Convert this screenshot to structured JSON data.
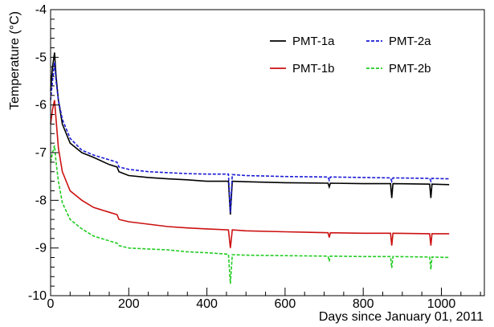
{
  "chart_data": {
    "type": "line",
    "xlabel": "Days since January 01, 2011",
    "ylabel": "Temperature (°C)",
    "xlim": [
      0,
      1110
    ],
    "ylim": [
      -10,
      -4
    ],
    "x_ticks": [
      0,
      200,
      400,
      600,
      800,
      1000
    ],
    "y_ticks": [
      -10,
      -9,
      -8,
      -7,
      -6,
      -5,
      -4
    ],
    "x_tick_labels": [
      "0",
      "200",
      "400",
      "600",
      "800",
      "1000"
    ],
    "y_tick_labels": [
      "-10",
      "-9",
      "-8",
      "-7",
      "-6",
      "-5",
      "-4"
    ],
    "x_minor_step": 50,
    "y_minor_step": 0.2,
    "grid": false,
    "legend_position": "top-right",
    "series": [
      {
        "name": "PMT-1a",
        "color": "#000000",
        "dash": "solid",
        "points": [
          [
            0,
            -5.7
          ],
          [
            5,
            -5.2
          ],
          [
            10,
            -4.9
          ],
          [
            14,
            -5.4
          ],
          [
            20,
            -5.9
          ],
          [
            30,
            -6.4
          ],
          [
            50,
            -6.8
          ],
          [
            80,
            -7.0
          ],
          [
            110,
            -7.1
          ],
          [
            150,
            -7.25
          ],
          [
            170,
            -7.3
          ],
          [
            175,
            -7.4
          ],
          [
            200,
            -7.48
          ],
          [
            250,
            -7.52
          ],
          [
            300,
            -7.55
          ],
          [
            350,
            -7.57
          ],
          [
            400,
            -7.6
          ],
          [
            455,
            -7.6
          ],
          [
            460,
            -8.3
          ],
          [
            465,
            -7.6
          ],
          [
            500,
            -7.61
          ],
          [
            600,
            -7.63
          ],
          [
            710,
            -7.64
          ],
          [
            713,
            -7.72
          ],
          [
            716,
            -7.64
          ],
          [
            800,
            -7.65
          ],
          [
            870,
            -7.65
          ],
          [
            873,
            -7.95
          ],
          [
            876,
            -7.65
          ],
          [
            970,
            -7.66
          ],
          [
            973,
            -7.95
          ],
          [
            976,
            -7.66
          ],
          [
            1020,
            -7.67
          ]
        ]
      },
      {
        "name": "PMT-2a",
        "color": "#1a1ad6",
        "dash": "dashed",
        "points": [
          [
            0,
            -5.9
          ],
          [
            5,
            -5.5
          ],
          [
            10,
            -5.1
          ],
          [
            14,
            -5.5
          ],
          [
            20,
            -5.9
          ],
          [
            30,
            -6.3
          ],
          [
            50,
            -6.7
          ],
          [
            80,
            -6.95
          ],
          [
            110,
            -7.05
          ],
          [
            150,
            -7.15
          ],
          [
            170,
            -7.2
          ],
          [
            175,
            -7.3
          ],
          [
            200,
            -7.35
          ],
          [
            250,
            -7.4
          ],
          [
            300,
            -7.42
          ],
          [
            350,
            -7.44
          ],
          [
            400,
            -7.45
          ],
          [
            455,
            -7.45
          ],
          [
            460,
            -8.25
          ],
          [
            465,
            -7.46
          ],
          [
            500,
            -7.48
          ],
          [
            600,
            -7.5
          ],
          [
            710,
            -7.51
          ],
          [
            713,
            -7.58
          ],
          [
            716,
            -7.51
          ],
          [
            800,
            -7.52
          ],
          [
            870,
            -7.53
          ],
          [
            873,
            -7.6
          ],
          [
            876,
            -7.53
          ],
          [
            970,
            -7.54
          ],
          [
            973,
            -7.6
          ],
          [
            976,
            -7.54
          ],
          [
            1020,
            -7.55
          ]
        ]
      },
      {
        "name": "PMT-1b",
        "color": "#cc1111",
        "dash": "solid",
        "points": [
          [
            0,
            -6.4
          ],
          [
            5,
            -6.1
          ],
          [
            10,
            -5.9
          ],
          [
            14,
            -6.3
          ],
          [
            20,
            -6.9
          ],
          [
            30,
            -7.4
          ],
          [
            50,
            -7.8
          ],
          [
            80,
            -8.0
          ],
          [
            110,
            -8.15
          ],
          [
            150,
            -8.25
          ],
          [
            170,
            -8.3
          ],
          [
            175,
            -8.4
          ],
          [
            200,
            -8.45
          ],
          [
            250,
            -8.5
          ],
          [
            300,
            -8.55
          ],
          [
            350,
            -8.58
          ],
          [
            400,
            -8.6
          ],
          [
            455,
            -8.62
          ],
          [
            460,
            -9.0
          ],
          [
            465,
            -8.62
          ],
          [
            500,
            -8.64
          ],
          [
            600,
            -8.66
          ],
          [
            710,
            -8.68
          ],
          [
            713,
            -8.78
          ],
          [
            716,
            -8.68
          ],
          [
            800,
            -8.69
          ],
          [
            870,
            -8.69
          ],
          [
            873,
            -8.95
          ],
          [
            876,
            -8.69
          ],
          [
            970,
            -8.7
          ],
          [
            973,
            -8.95
          ],
          [
            976,
            -8.7
          ],
          [
            1020,
            -8.7
          ]
        ]
      },
      {
        "name": "PMT-2b",
        "color": "#22cc22",
        "dash": "dashed",
        "points": [
          [
            0,
            -7.2
          ],
          [
            5,
            -7.0
          ],
          [
            10,
            -6.85
          ],
          [
            14,
            -7.2
          ],
          [
            20,
            -7.6
          ],
          [
            30,
            -8.05
          ],
          [
            50,
            -8.4
          ],
          [
            80,
            -8.6
          ],
          [
            110,
            -8.75
          ],
          [
            150,
            -8.85
          ],
          [
            170,
            -8.9
          ],
          [
            175,
            -8.95
          ],
          [
            200,
            -9.0
          ],
          [
            250,
            -9.02
          ],
          [
            300,
            -9.04
          ],
          [
            350,
            -9.08
          ],
          [
            400,
            -9.1
          ],
          [
            455,
            -9.13
          ],
          [
            460,
            -9.75
          ],
          [
            465,
            -9.14
          ],
          [
            500,
            -9.15
          ],
          [
            600,
            -9.16
          ],
          [
            710,
            -9.17
          ],
          [
            713,
            -9.28
          ],
          [
            716,
            -9.17
          ],
          [
            800,
            -9.18
          ],
          [
            870,
            -9.18
          ],
          [
            873,
            -9.42
          ],
          [
            876,
            -9.18
          ],
          [
            970,
            -9.19
          ],
          [
            973,
            -9.45
          ],
          [
            976,
            -9.19
          ],
          [
            1020,
            -9.2
          ]
        ]
      }
    ]
  }
}
